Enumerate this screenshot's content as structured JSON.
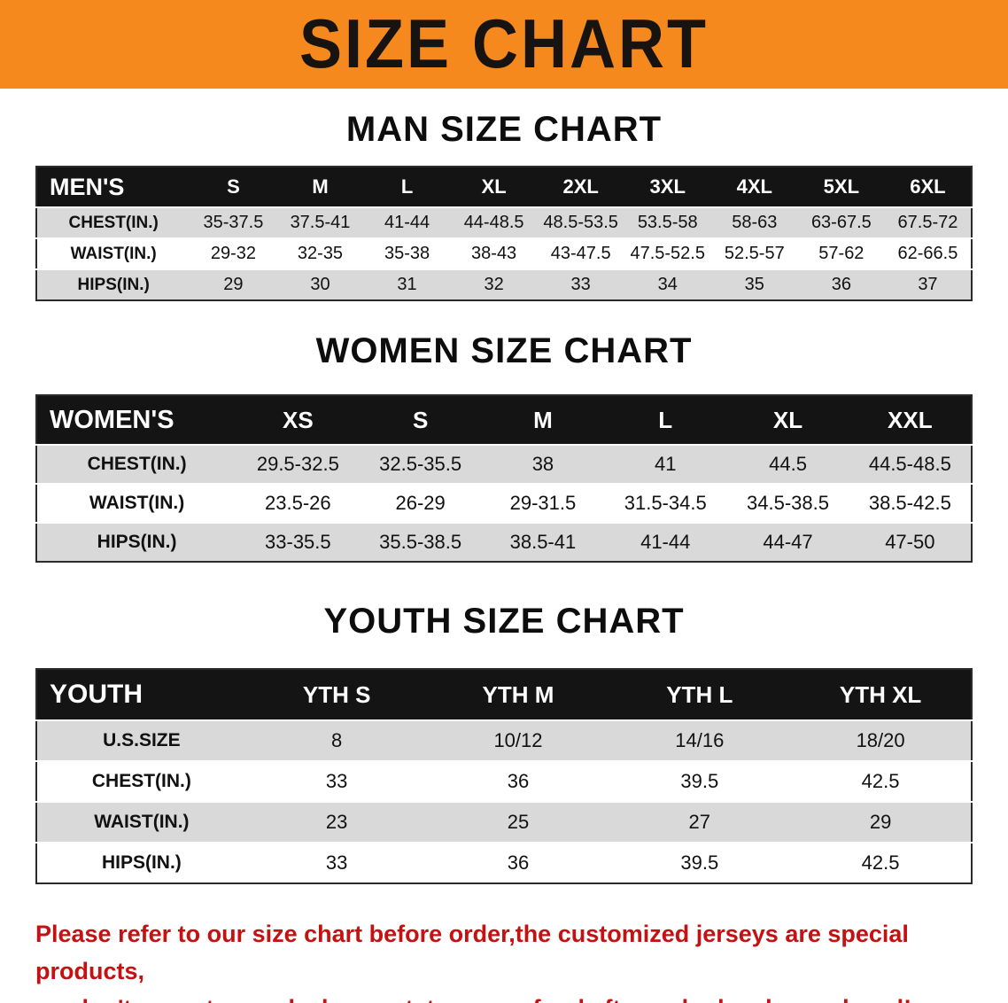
{
  "banner": {
    "title": "SIZE CHART"
  },
  "colors": {
    "banner_bg": "#f6891d",
    "header_bg": "#141414",
    "row_shade": "#d9d9d9",
    "note_red": "#c41212"
  },
  "men": {
    "heading": "MAN SIZE CHART",
    "label": "MEN'S",
    "sizes": [
      "S",
      "M",
      "L",
      "XL",
      "2XL",
      "3XL",
      "4XL",
      "5XL",
      "6XL"
    ],
    "rows": [
      {
        "label": "CHEST(IN.)",
        "values": [
          "35-37.5",
          "37.5-41",
          "41-44",
          "44-48.5",
          "48.5-53.5",
          "53.5-58",
          "58-63",
          "63-67.5",
          "67.5-72"
        ]
      },
      {
        "label": "WAIST(IN.)",
        "values": [
          "29-32",
          "32-35",
          "35-38",
          "38-43",
          "43-47.5",
          "47.5-52.5",
          "52.5-57",
          "57-62",
          "62-66.5"
        ]
      },
      {
        "label": "HIPS(IN.)",
        "values": [
          "29",
          "30",
          "31",
          "32",
          "33",
          "34",
          "35",
          "36",
          "37"
        ]
      }
    ]
  },
  "women": {
    "heading": "WOMEN SIZE CHART",
    "label": "WOMEN'S",
    "sizes": [
      "XS",
      "S",
      "M",
      "L",
      "XL",
      "XXL"
    ],
    "rows": [
      {
        "label": "CHEST(IN.)",
        "values": [
          "29.5-32.5",
          "32.5-35.5",
          "38",
          "41",
          "44.5",
          "44.5-48.5"
        ]
      },
      {
        "label": "WAIST(IN.)",
        "values": [
          "23.5-26",
          "26-29",
          "29-31.5",
          "31.5-34.5",
          "34.5-38.5",
          "38.5-42.5"
        ]
      },
      {
        "label": "HIPS(IN.)",
        "values": [
          "33-35.5",
          "35.5-38.5",
          "38.5-41",
          "41-44",
          "44-47",
          "47-50"
        ]
      }
    ]
  },
  "youth": {
    "heading": "YOUTH SIZE CHART",
    "label": "YOUTH",
    "sizes": [
      "YTH S",
      "YTH M",
      "YTH L",
      "YTH XL"
    ],
    "rows": [
      {
        "label": "U.S.SIZE",
        "values": [
          "8",
          "10/12",
          "14/16",
          "18/20"
        ]
      },
      {
        "label": "CHEST(IN.)",
        "values": [
          "33",
          "36",
          "39.5",
          "42.5"
        ]
      },
      {
        "label": "WAIST(IN.)",
        "values": [
          "23",
          "25",
          "27",
          "29"
        ]
      },
      {
        "label": "HIPS(IN.)",
        "values": [
          "33",
          "36",
          "39.5",
          "42.5"
        ]
      }
    ]
  },
  "note": {
    "line1": "Please refer to our size chart before order,the customized jerseys are special products,",
    "line2": "we don't accept cancel, change, teturn or refund after order has been placed!"
  }
}
